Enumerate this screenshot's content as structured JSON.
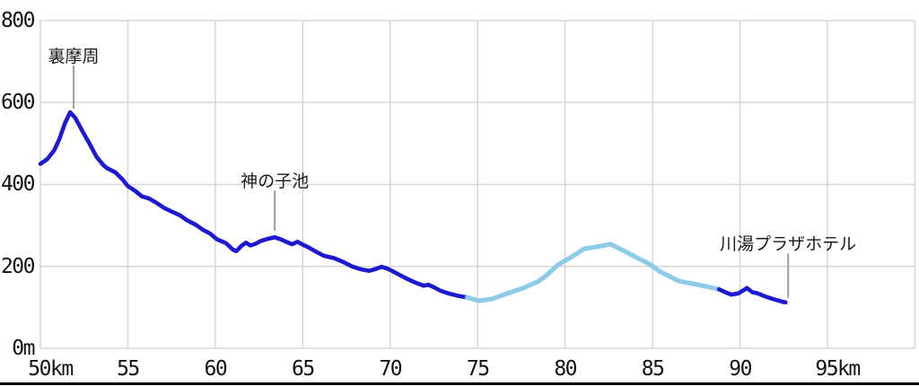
{
  "colors": {
    "track_dark_blue": "#1d18d1",
    "track_light_blue": "#8ecbe9",
    "gridline": "#d6d6d6",
    "callout_line": "#9e9e9e",
    "axis_text": "#111111",
    "bottom_border": "#000000"
  },
  "chart_data": {
    "type": "line",
    "title": "",
    "xlabel": "distance (km)",
    "ylabel": "elevation (m)",
    "x_unit": "km",
    "y_unit": "m",
    "grid": true,
    "legend": "none",
    "x_axis": {
      "min_km": 50,
      "max_km": 100,
      "gridlines_km": [
        50,
        55,
        60,
        65,
        70,
        75,
        80,
        85,
        90,
        95,
        100
      ],
      "ticks": [
        {
          "km": 50,
          "label": "50km"
        },
        {
          "km": 55,
          "label": "55"
        },
        {
          "km": 60,
          "label": "60"
        },
        {
          "km": 65,
          "label": "65"
        },
        {
          "km": 70,
          "label": "70"
        },
        {
          "km": 75,
          "label": "75"
        },
        {
          "km": 80,
          "label": "80"
        },
        {
          "km": 85,
          "label": "85"
        },
        {
          "km": 90,
          "label": "90"
        },
        {
          "km": 95,
          "label": "95km"
        }
      ]
    },
    "y_axis": {
      "min_m": 0,
      "max_m": 800,
      "ticks": [
        {
          "m": 800,
          "label": "800"
        },
        {
          "m": 600,
          "label": "600"
        },
        {
          "m": 400,
          "label": "400"
        },
        {
          "m": 200,
          "label": "200"
        },
        {
          "m": 0,
          "label": "0m"
        }
      ]
    },
    "series": [
      {
        "name": "recorded-track-segment-1",
        "color": "#1d18d1",
        "stroke_width": 4.6,
        "points": [
          [
            50.0,
            450
          ],
          [
            50.4,
            462
          ],
          [
            50.8,
            484
          ],
          [
            51.1,
            512
          ],
          [
            51.4,
            549
          ],
          [
            51.7,
            576
          ],
          [
            52.0,
            562
          ],
          [
            52.4,
            530
          ],
          [
            52.8,
            500
          ],
          [
            53.2,
            468
          ],
          [
            53.6,
            447
          ],
          [
            53.8,
            440
          ],
          [
            54.3,
            429
          ],
          [
            54.7,
            412
          ],
          [
            55.0,
            396
          ],
          [
            55.4,
            385
          ],
          [
            55.8,
            371
          ],
          [
            56.2,
            366
          ],
          [
            56.6,
            356
          ],
          [
            57.1,
            342
          ],
          [
            57.5,
            334
          ],
          [
            58.0,
            324
          ],
          [
            58.4,
            312
          ],
          [
            58.9,
            301
          ],
          [
            59.3,
            289
          ],
          [
            59.7,
            280
          ],
          [
            60.1,
            266
          ],
          [
            60.6,
            257
          ],
          [
            61.0,
            241
          ],
          [
            61.2,
            237
          ],
          [
            61.5,
            250
          ],
          [
            61.75,
            258
          ],
          [
            62.0,
            251
          ],
          [
            62.3,
            255
          ],
          [
            62.6,
            262
          ],
          [
            63.0,
            267
          ],
          [
            63.4,
            271
          ],
          [
            63.8,
            265
          ],
          [
            64.1,
            259
          ],
          [
            64.4,
            254
          ],
          [
            64.7,
            260
          ],
          [
            65.0,
            253
          ],
          [
            65.3,
            247
          ],
          [
            65.7,
            237
          ],
          [
            66.2,
            226
          ],
          [
            66.8,
            220
          ],
          [
            67.3,
            211
          ],
          [
            67.8,
            200
          ],
          [
            68.3,
            193
          ],
          [
            68.8,
            189
          ],
          [
            69.2,
            194
          ],
          [
            69.5,
            199
          ],
          [
            69.8,
            195
          ],
          [
            70.1,
            189
          ],
          [
            70.5,
            180
          ],
          [
            70.9,
            171
          ],
          [
            71.4,
            161
          ],
          [
            71.9,
            153
          ],
          [
            72.2,
            155
          ],
          [
            72.5,
            149
          ],
          [
            72.9,
            140
          ],
          [
            73.4,
            133
          ],
          [
            73.9,
            128
          ],
          [
            74.4,
            124
          ]
        ]
      },
      {
        "name": "planned-route-segment",
        "color": "#8ecbe9",
        "stroke_width": 5.2,
        "points": [
          [
            74.4,
            124
          ],
          [
            75.1,
            116
          ],
          [
            75.8,
            120
          ],
          [
            76.5,
            131
          ],
          [
            77.6,
            147
          ],
          [
            78.5,
            164
          ],
          [
            78.9,
            177
          ],
          [
            79.6,
            204
          ],
          [
            80.3,
            221
          ],
          [
            81.1,
            243
          ],
          [
            81.7,
            247
          ],
          [
            82.6,
            254
          ],
          [
            83.4,
            237
          ],
          [
            84.1,
            221
          ],
          [
            84.8,
            206
          ],
          [
            85.4,
            188
          ],
          [
            86.5,
            164
          ],
          [
            87.5,
            156
          ],
          [
            88.5,
            147
          ],
          [
            88.8,
            144
          ]
        ]
      },
      {
        "name": "recorded-track-segment-2",
        "color": "#1d18d1",
        "stroke_width": 4.6,
        "points": [
          [
            88.8,
            144
          ],
          [
            89.2,
            136
          ],
          [
            89.5,
            131
          ],
          [
            89.9,
            134
          ],
          [
            90.4,
            147
          ],
          [
            90.7,
            137
          ],
          [
            91.0,
            134
          ],
          [
            91.4,
            127
          ],
          [
            91.9,
            120
          ],
          [
            92.4,
            114
          ],
          [
            92.6,
            112
          ]
        ]
      }
    ],
    "annotations": [
      {
        "label": "裏摩周",
        "km": 51.9,
        "line_top_m": 690,
        "line_bottom_m": 585,
        "points_to_m": 576
      },
      {
        "label": "神の子池",
        "km": 63.4,
        "line_top_m": 385,
        "line_bottom_m": 287,
        "points_to_m": 271
      },
      {
        "label": "川湯プラザホテル",
        "km": 92.75,
        "line_top_m": 232,
        "line_bottom_m": 123,
        "points_to_m": 112
      }
    ]
  }
}
